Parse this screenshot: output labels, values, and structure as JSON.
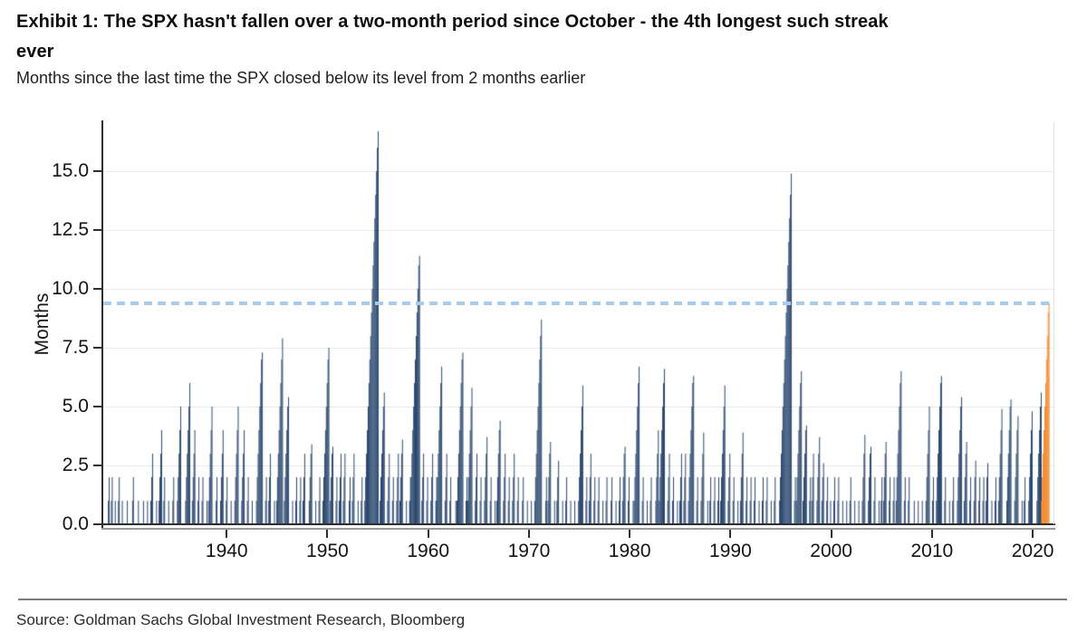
{
  "header": {
    "title_lines": [
      "Exhibit 1: The SPX hasn't fallen over a two-month period since October - the 4th longest such streak",
      "ever"
    ],
    "subtitle": "Months since the last time the SPX closed below its level from 2 months earlier"
  },
  "footer": {
    "source": "Source: Goldman Sachs Global Investment Research, Bloomberg"
  },
  "colors": {
    "bar": "#1b3a64",
    "highlight": "#f28321",
    "reference": "#a6cbec",
    "axis": "#2e2e2e",
    "grid": "#ebebeb",
    "text": "#141414"
  },
  "chart_data": {
    "type": "bar",
    "title": "Exhibit 1: The SPX hasn't fallen over a two-month period since October - the 4th longest such streak ever",
    "subtitle": "Months since the last time the SPX closed below its level from 2 months earlier",
    "xlabel": "",
    "ylabel": "Months",
    "xlim": [
      1927.75,
      2022.06
    ],
    "ylim": [
      0,
      17.08
    ],
    "grid": "horizontal",
    "legend": "none",
    "y_ticks": [
      {
        "label": "0.0",
        "value": 0
      },
      {
        "label": "2.5",
        "value": 2.5
      },
      {
        "label": "5.0",
        "value": 5
      },
      {
        "label": "7.5",
        "value": 7.5
      },
      {
        "label": "10.0",
        "value": 10
      },
      {
        "label": "12.5",
        "value": 12.5
      },
      {
        "label": "15.0",
        "value": 15
      }
    ],
    "x_ticks": [
      {
        "label": "1940",
        "value": 1940
      },
      {
        "label": "1950",
        "value": 1950
      },
      {
        "label": "1960",
        "value": 1960
      },
      {
        "label": "1970",
        "value": 1970
      },
      {
        "label": "1980",
        "value": 1980
      },
      {
        "label": "1990",
        "value": 1990
      },
      {
        "label": "2000",
        "value": 2000
      },
      {
        "label": "2010",
        "value": 2010
      },
      {
        "label": "2020",
        "value": 2020
      }
    ],
    "reference_line": {
      "value": 9.4,
      "style": "dashed",
      "meaning": "current streak length (months since October)"
    },
    "series_encoding": "each [end_year, streak_months] expands to monthly bars of heights 1..streak_months ending at end_year (months since last 2-month decline)",
    "streaks": [
      [
        1928.3,
        2
      ],
      [
        1928.6,
        2
      ],
      [
        1928.9,
        1
      ],
      [
        1929.3,
        2
      ],
      [
        1929.6,
        1
      ],
      [
        1930.1,
        1
      ],
      [
        1930.7,
        2
      ],
      [
        1931.2,
        1
      ],
      [
        1931.7,
        1
      ],
      [
        1932.1,
        1
      ],
      [
        1932.6,
        3
      ],
      [
        1933.0,
        1
      ],
      [
        1933.5,
        4
      ],
      [
        1933.8,
        2
      ],
      [
        1934.2,
        1
      ],
      [
        1934.7,
        2
      ],
      [
        1935.4,
        5
      ],
      [
        1936.3,
        6
      ],
      [
        1936.8,
        4
      ],
      [
        1937.2,
        2
      ],
      [
        1937.6,
        2
      ],
      [
        1938.0,
        1
      ],
      [
        1938.5,
        5
      ],
      [
        1939.0,
        2
      ],
      [
        1939.6,
        4
      ],
      [
        1940.0,
        2
      ],
      [
        1940.4,
        1
      ],
      [
        1941.1,
        5
      ],
      [
        1941.7,
        4
      ],
      [
        1942.1,
        2
      ],
      [
        1942.5,
        1
      ],
      [
        1943.5,
        7.3
      ],
      [
        1943.9,
        2
      ],
      [
        1944.3,
        3
      ],
      [
        1944.7,
        1
      ],
      [
        1945.5,
        7.9
      ],
      [
        1946.1,
        5.4
      ],
      [
        1946.5,
        1
      ],
      [
        1946.9,
        2
      ],
      [
        1947.3,
        2
      ],
      [
        1947.7,
        3
      ],
      [
        1948.4,
        3.4
      ],
      [
        1948.8,
        1
      ],
      [
        1949.2,
        2
      ],
      [
        1950.1,
        7.5
      ],
      [
        1950.5,
        3.3
      ],
      [
        1950.9,
        2
      ],
      [
        1951.3,
        3
      ],
      [
        1951.7,
        3
      ],
      [
        1952.2,
        2
      ],
      [
        1952.6,
        3
      ],
      [
        1953.0,
        1
      ],
      [
        1953.4,
        2
      ],
      [
        1955.0,
        16.7
      ],
      [
        1955.6,
        5.6
      ],
      [
        1956.1,
        3
      ],
      [
        1956.5,
        2
      ],
      [
        1957.0,
        3
      ],
      [
        1957.4,
        3.6
      ],
      [
        1957.8,
        1
      ],
      [
        1958.2,
        2
      ],
      [
        1959.1,
        11.4
      ],
      [
        1959.5,
        3
      ],
      [
        1959.9,
        2
      ],
      [
        1960.4,
        3
      ],
      [
        1960.8,
        2
      ],
      [
        1961.3,
        6.7
      ],
      [
        1961.8,
        3
      ],
      [
        1962.2,
        2
      ],
      [
        1962.7,
        1
      ],
      [
        1963.4,
        7.3
      ],
      [
        1963.8,
        2
      ],
      [
        1964.3,
        5.8
      ],
      [
        1964.8,
        3
      ],
      [
        1965.2,
        2
      ],
      [
        1965.8,
        3.7
      ],
      [
        1966.2,
        2
      ],
      [
        1966.6,
        1
      ],
      [
        1967.1,
        4.4
      ],
      [
        1967.6,
        3
      ],
      [
        1968.0,
        2
      ],
      [
        1968.5,
        3
      ],
      [
        1968.9,
        2
      ],
      [
        1969.4,
        2
      ],
      [
        1969.8,
        1
      ],
      [
        1970.2,
        1
      ],
      [
        1971.2,
        8.7
      ],
      [
        1971.7,
        2
      ],
      [
        1972.1,
        3.5
      ],
      [
        1972.5,
        1
      ],
      [
        1972.9,
        2.7
      ],
      [
        1973.3,
        1
      ],
      [
        1973.7,
        2
      ],
      [
        1974.1,
        1
      ],
      [
        1974.5,
        1
      ],
      [
        1975.3,
        5.9
      ],
      [
        1975.7,
        2
      ],
      [
        1976.1,
        3
      ],
      [
        1976.5,
        2
      ],
      [
        1976.9,
        2
      ],
      [
        1977.3,
        1
      ],
      [
        1977.7,
        2
      ],
      [
        1978.2,
        2
      ],
      [
        1978.6,
        1
      ],
      [
        1979.0,
        2
      ],
      [
        1979.5,
        3.3
      ],
      [
        1979.9,
        2
      ],
      [
        1980.3,
        1
      ],
      [
        1980.9,
        6.7
      ],
      [
        1981.3,
        2
      ],
      [
        1981.7,
        1
      ],
      [
        1982.1,
        2
      ],
      [
        1982.8,
        4
      ],
      [
        1983.4,
        6.6
      ],
      [
        1983.9,
        3
      ],
      [
        1984.3,
        2
      ],
      [
        1984.7,
        1
      ],
      [
        1985.1,
        3
      ],
      [
        1985.5,
        3
      ],
      [
        1986.3,
        6.3
      ],
      [
        1986.7,
        2
      ],
      [
        1987.3,
        3.9
      ],
      [
        1987.7,
        1
      ],
      [
        1988.0,
        2
      ],
      [
        1988.4,
        2
      ],
      [
        1988.8,
        2
      ],
      [
        1989.4,
        5.9
      ],
      [
        1989.9,
        3
      ],
      [
        1990.3,
        2
      ],
      [
        1990.7,
        1
      ],
      [
        1991.2,
        3.9
      ],
      [
        1991.6,
        2
      ],
      [
        1992.0,
        2
      ],
      [
        1992.4,
        2
      ],
      [
        1992.8,
        1
      ],
      [
        1993.2,
        2
      ],
      [
        1993.6,
        2
      ],
      [
        1994.0,
        1
      ],
      [
        1994.4,
        2
      ],
      [
        1996.0,
        14.9
      ],
      [
        1996.4,
        2
      ],
      [
        1997.0,
        6.5
      ],
      [
        1997.5,
        4.2
      ],
      [
        1997.9,
        2
      ],
      [
        1998.2,
        3
      ],
      [
        1998.8,
        3.7
      ],
      [
        1999.2,
        2.6
      ],
      [
        1999.6,
        2
      ],
      [
        1999.9,
        1
      ],
      [
        2000.3,
        2
      ],
      [
        2000.7,
        2
      ],
      [
        2001.1,
        1
      ],
      [
        2001.5,
        1
      ],
      [
        2001.9,
        2
      ],
      [
        2002.3,
        1
      ],
      [
        2002.7,
        1
      ],
      [
        2003.3,
        3.8
      ],
      [
        2003.9,
        3.3
      ],
      [
        2004.3,
        2
      ],
      [
        2004.7,
        1
      ],
      [
        2005.0,
        2
      ],
      [
        2005.4,
        3.5
      ],
      [
        2005.8,
        2
      ],
      [
        2006.2,
        2
      ],
      [
        2006.9,
        6.5
      ],
      [
        2007.3,
        2
      ],
      [
        2007.7,
        2
      ],
      [
        2008.2,
        1
      ],
      [
        2008.6,
        1
      ],
      [
        2009.0,
        1
      ],
      [
        2009.7,
        5
      ],
      [
        2010.1,
        2
      ],
      [
        2010.9,
        6.3
      ],
      [
        2011.3,
        2
      ],
      [
        2011.7,
        1
      ],
      [
        2012.1,
        2
      ],
      [
        2012.9,
        5.4
      ],
      [
        2013.4,
        3.5
      ],
      [
        2013.8,
        2
      ],
      [
        2014.3,
        2.7
      ],
      [
        2014.7,
        2
      ],
      [
        2015.1,
        2
      ],
      [
        2015.5,
        2.6
      ],
      [
        2015.9,
        1
      ],
      [
        2016.3,
        2
      ],
      [
        2016.9,
        4.9
      ],
      [
        2017.8,
        5.3
      ],
      [
        2018.5,
        4.6
      ],
      [
        2018.9,
        1
      ],
      [
        2019.2,
        2
      ],
      [
        2019.9,
        4.8
      ],
      [
        2020.8,
        5.6
      ]
    ],
    "current_streak": {
      "end_year": 2021.58,
      "months": 9.4,
      "highlighted": true
    }
  }
}
